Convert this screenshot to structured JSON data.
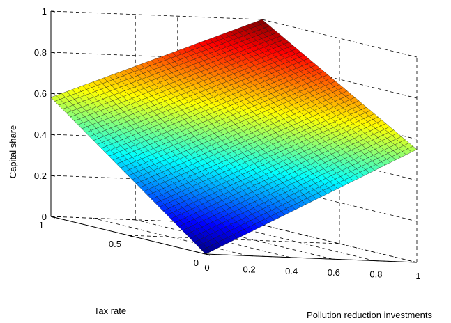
{
  "chart_data": {
    "type": "surface3d",
    "title": "",
    "xlabel": "Pollution reduction investments",
    "ylabel": "Tax rate",
    "zlabel": "Capital share",
    "xlim": [
      0,
      1
    ],
    "ylim": [
      0,
      1
    ],
    "zlim": [
      0,
      1
    ],
    "x_ticks": [
      "0",
      "0.2",
      "0.4",
      "0.6",
      "0.8",
      "1"
    ],
    "y_ticks": [
      "0",
      "0.5",
      "1"
    ],
    "z_ticks": [
      "0",
      "0.2",
      "0.4",
      "0.6",
      "0.8",
      "1"
    ],
    "grid": true,
    "colormap": "jet",
    "surface_corners": [
      {
        "x": 0,
        "y": 0,
        "z": 0.0
      },
      {
        "x": 1,
        "y": 0,
        "z": 0.55
      },
      {
        "x": 0,
        "y": 1,
        "z": 0.58
      },
      {
        "x": 1,
        "y": 1,
        "z": 1.0
      }
    ]
  }
}
